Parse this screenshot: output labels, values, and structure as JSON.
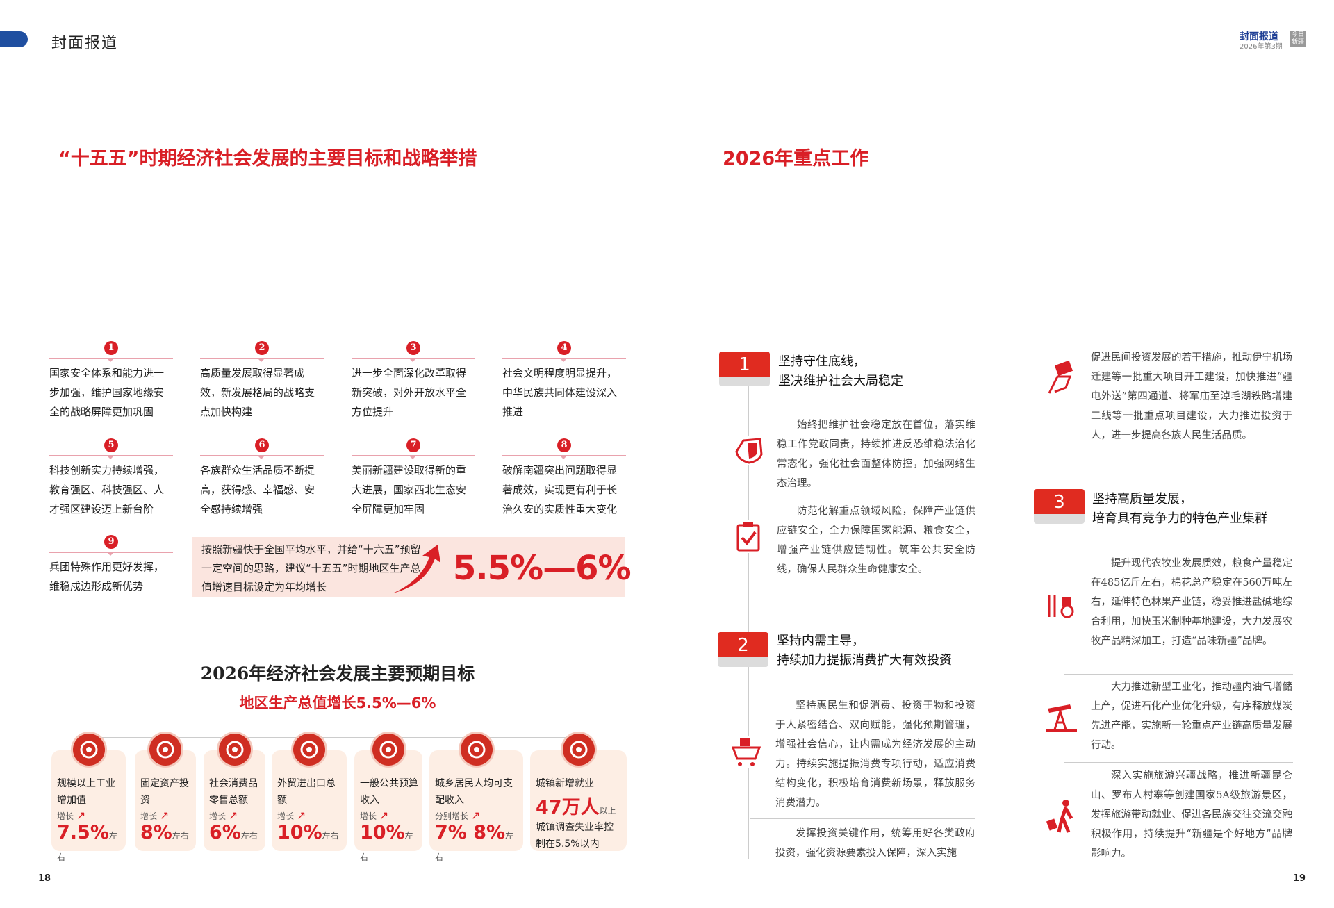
{
  "header": {
    "section": "封面报道",
    "right_section": "封面报道",
    "issue": "2026年第3期",
    "logo_text": "今日新疆",
    "accent": "#d91f26",
    "brand_blue": "#1f4fa0"
  },
  "left": {
    "title": "“十五五”时期经济社会发展的主要目标和战略举措",
    "goals": [
      {
        "n": "1",
        "text": "国家安全体系和能力进一步加强，维护国家地缘安全的战略屏障更加巩固"
      },
      {
        "n": "2",
        "text": "高质量发展取得显著成效，新发展格局的战略支点加快构建"
      },
      {
        "n": "3",
        "text": "进一步全面深化改革取得新突破，对外开放水平全方位提升"
      },
      {
        "n": "4",
        "text": "社会文明程度明显提升，中华民族共同体建设深入推进"
      },
      {
        "n": "5",
        "text": "科技创新实力持续增强，教育强区、科技强区、人才强区建设迈上新台阶"
      },
      {
        "n": "6",
        "text": "各族群众生活品质不断提高，获得感、幸福感、安全感持续增强"
      },
      {
        "n": "7",
        "text": "美丽新疆建设取得新的重大进展，国家西北生态安全屏障更加牢固"
      },
      {
        "n": "8",
        "text": "破解南疆突出问题取得显著成效，实现更有利于长治久安的实质性重大变化"
      },
      {
        "n": "9",
        "text": "兵团特殊作用更好发挥，维稳戍边形成新优势"
      }
    ],
    "gdp_box": {
      "text": "按照新疆快于全国平均水平，并给“十六五”预留一定空间的思路，建议“十五五”时期地区生产总值增速目标设定为年均增长",
      "value": "5.5%—6%"
    },
    "targets_title": "2026年经济社会发展主要预期目标",
    "targets_sub": "地区生产总值增长5.5%—6%",
    "targets": [
      {
        "icon": "gear-wrench-icon",
        "label": "规模以上工业增加值",
        "grow": "增长",
        "value": "7.5%",
        "suffix": "左右"
      },
      {
        "icon": "money-hand-icon",
        "label": "固定资产投资",
        "grow": "增长",
        "value": "8%",
        "suffix": "左右"
      },
      {
        "icon": "coins-chart-icon",
        "label": "社会消费品零售总额",
        "grow": "增长",
        "value": "6%",
        "suffix": "左右"
      },
      {
        "icon": "cargo-icon",
        "label": "外贸进出口总额",
        "grow": "增长",
        "value": "10%",
        "suffix": "左右"
      },
      {
        "icon": "cart-icon",
        "label": "一般公共预算收入",
        "grow": "增长",
        "value": "10%",
        "suffix": "左右"
      },
      {
        "icon": "wallet-icon",
        "label": "城乡居民人均可支配收入",
        "grow": "分别增长",
        "value": "7%  8%",
        "suffix": "左右"
      },
      {
        "icon": "runner-icon",
        "label": "城镇新增就业",
        "value": "47万人",
        "suffix": "以上",
        "extra": "城镇调查失业率控制在5.5%以内"
      }
    ],
    "page": "18"
  },
  "right": {
    "title": "2026年重点工作",
    "sections": [
      {
        "n": "1",
        "h1": "坚持守住底线，",
        "h2": "坚决维护社会大局稳定",
        "paras": [
          "始终把维护社会稳定放在首位，落实维稳工作党政同责，持续推进反恐维稳法治化常态化，强化社会面整体防控，加强网络生态治理。",
          "防范化解重点领域风险，保障产业链供应链安全，全力保障国家能源、粮食安全，增强产业链供应链韧性。筑牢公共安全防线，确保人民群众生命健康安全。"
        ]
      },
      {
        "n": "2",
        "h1": "坚持内需主导，",
        "h2": "持续加力提振消费扩大有效投资",
        "paras": [
          "坚持惠民生和促消费、投资于物和投资于人紧密结合、双向赋能，强化预期管理，增强社会信心，让内需成为经济发展的主动力。持续实施提振消费专项行动，适应消费结构变化，积极培育消费新场景，释放服务消费潜力。",
          "发挥投资关键作用，统筹用好各类政府投资，强化资源要素投入保障，深入实施",
          "促进民间投资发展的若干措施，推动伊宁机场迁建等一批重大项目开工建设，加快推进“疆电外送”第四通道、将军庙至淖毛湖铁路增建二线等一批重点项目建设，大力推进投资于人，进一步提高各族人民生活品质。"
        ]
      },
      {
        "n": "3",
        "h1": "坚持高质量发展，",
        "h2": "培育具有竞争力的特色产业集群",
        "paras": [
          "提升现代农牧业发展质效，粮食产量稳定在485亿斤左右，棉花总产稳定在560万吨左右，延伸特色林果产业链，稳妥推进盐碱地综合利用，加快玉米制种基地建设，大力发展农牧产品精深加工，打造“品味新疆”品牌。",
          "大力推进新型工业化，推动疆内油气增储上产，促进石化产业优化升级，有序释放煤炭先进产能，实施新一轮重点产业链高质量发展行动。",
          "深入实施旅游兴疆战略，推进新疆昆仑山、罗布人村寨等创建国家5A级旅游景区，发挥旅游带动就业、促进各民族交往交流交融积极作用，持续提升“新疆是个好地方”品牌影响力。"
        ]
      }
    ],
    "page": "19"
  }
}
